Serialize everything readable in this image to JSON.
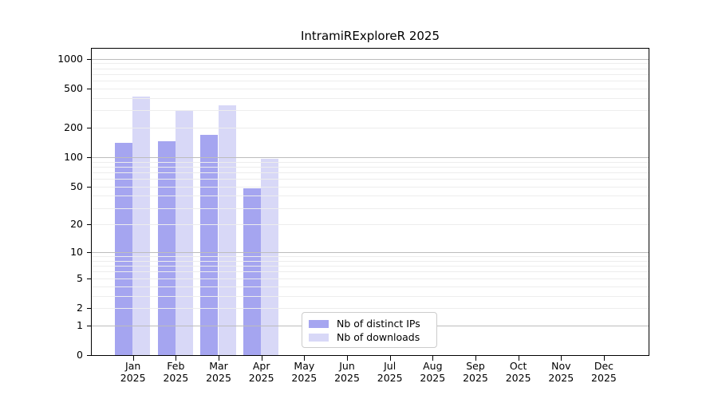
{
  "title": "IntramiRExploreR 2025",
  "chart_data": {
    "type": "bar",
    "title": "IntramiRExploreR 2025",
    "categories": [
      "Jan 2025",
      "Feb 2025",
      "Mar 2025",
      "Apr 2025",
      "May 2025",
      "Jun 2025",
      "Jul 2025",
      "Aug 2025",
      "Sep 2025",
      "Oct 2025",
      "Nov 2025",
      "Dec 2025"
    ],
    "series": [
      {
        "name": "Nb of distinct IPs",
        "color": "#a5a5f0",
        "values": [
          140,
          145,
          168,
          48,
          null,
          null,
          null,
          null,
          null,
          null,
          null,
          null
        ]
      },
      {
        "name": "Nb of downloads",
        "color": "#d8d8f7",
        "values": [
          415,
          295,
          340,
          97,
          null,
          null,
          null,
          null,
          null,
          null,
          null,
          null
        ]
      }
    ],
    "xlabel": "",
    "ylabel": "",
    "y_scale": "log1p",
    "ylim": [
      0,
      1270
    ],
    "y_ticks": [
      0,
      1,
      2,
      5,
      10,
      20,
      50,
      100,
      200,
      500,
      1000
    ],
    "grid": "horizontal, log minor + major decades",
    "legend_position": "inside lower center"
  },
  "legend": {
    "items": [
      {
        "label": "Nb of distinct IPs",
        "color": "#a5a5f0"
      },
      {
        "label": "Nb of downloads",
        "color": "#d8d8f7"
      }
    ]
  }
}
